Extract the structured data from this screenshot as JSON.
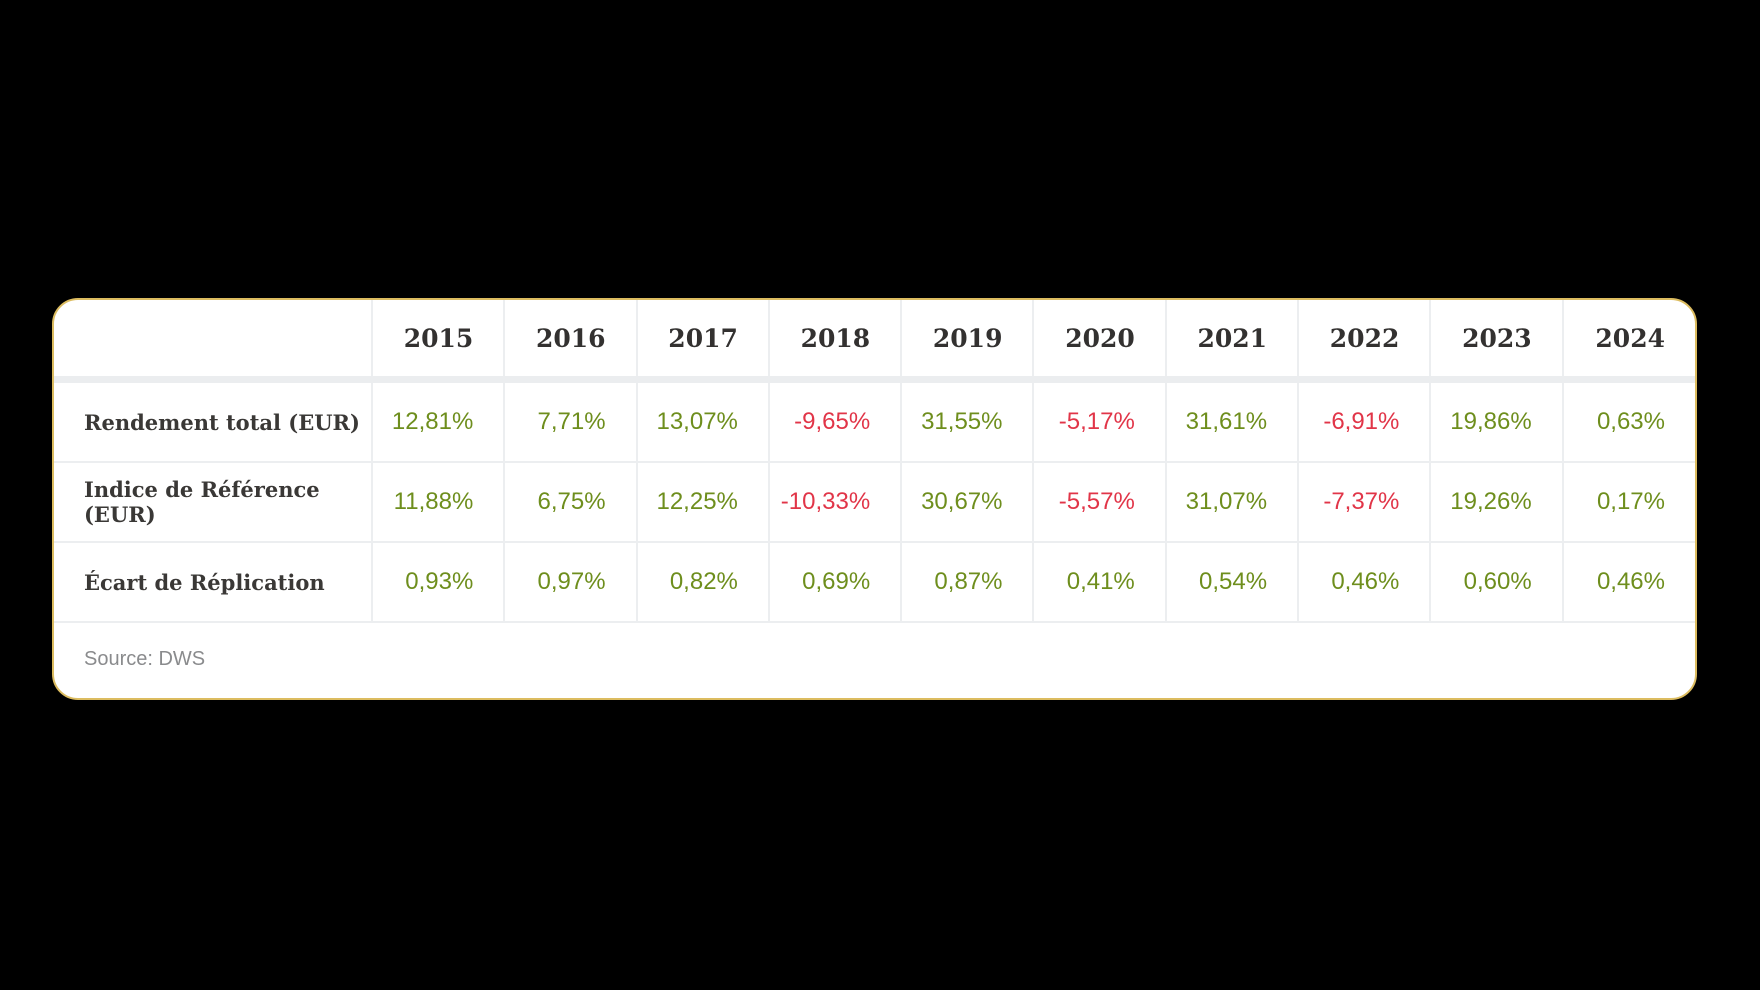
{
  "chart_data": {
    "type": "table",
    "title": "",
    "categories": [
      "2015",
      "2016",
      "2017",
      "2018",
      "2019",
      "2020",
      "2021",
      "2022",
      "2023",
      "2024"
    ],
    "series": [
      {
        "name": "Rendement total (EUR)",
        "values": [
          "12,81%",
          "7,71%",
          "13,07%",
          "-9,65%",
          "31,55%",
          "-5,17%",
          "31,61%",
          "-6,91%",
          "19,86%",
          "0,63%"
        ]
      },
      {
        "name": "Indice de Référence (EUR)",
        "values": [
          "11,88%",
          "6,75%",
          "12,25%",
          "-10,33%",
          "30,67%",
          "-5,57%",
          "31,07%",
          "-7,37%",
          "19,26%",
          "0,17%"
        ]
      },
      {
        "name": "Écart de Réplication",
        "values": [
          "0,93%",
          "0,97%",
          "0,82%",
          "0,69%",
          "0,87%",
          "0,41%",
          "0,54%",
          "0,46%",
          "0,60%",
          "0,46%"
        ]
      }
    ],
    "source": "Source: DWS",
    "layout": {
      "legend": "none",
      "grid": "column-dividers"
    }
  },
  "colors": {
    "positive_value": "#6e8e1d",
    "negative_value": "#e13548",
    "card_border": "#dcbc60",
    "header_text": "#333130",
    "label_text": "#3a3836",
    "source_text": "#8a8b8d",
    "divider": "#eceef0",
    "page_background": "#000000"
  }
}
